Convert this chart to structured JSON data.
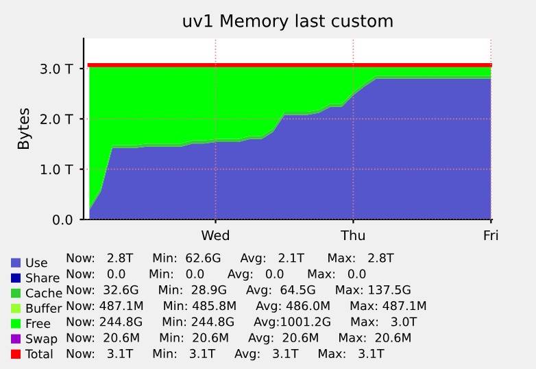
{
  "chart_data": {
    "type": "area",
    "stacked": true,
    "title": "uv1 Memory last custom",
    "ylabel": "Bytes",
    "categories": [
      null,
      null,
      null,
      null,
      null,
      null,
      null,
      null,
      null,
      null,
      null,
      "Wed",
      null,
      null,
      null,
      null,
      null,
      null,
      null,
      null,
      null,
      null,
      null,
      "Thu",
      null,
      null,
      null,
      null,
      null,
      null,
      null,
      null,
      null,
      null,
      null,
      "Fri"
    ],
    "series": [
      {
        "name": "Use",
        "color": "#5555cc",
        "values": [
          0.19,
          0.56,
          1.42,
          1.42,
          1.42,
          1.45,
          1.45,
          1.45,
          1.45,
          1.51,
          1.51,
          1.54,
          1.54,
          1.54,
          1.6,
          1.6,
          1.74,
          2.08,
          2.08,
          2.08,
          2.12,
          2.24,
          2.24,
          2.47,
          2.65,
          2.8,
          2.8,
          2.8,
          2.8,
          2.8,
          2.8,
          2.8,
          2.8,
          2.8,
          2.8,
          2.8
        ]
      },
      {
        "name": "Share",
        "color": "#0000aa",
        "values": [
          null,
          null,
          null,
          null,
          null,
          null,
          null,
          null,
          null,
          null,
          null,
          null,
          null,
          null,
          null,
          null,
          null,
          null,
          null,
          null,
          null,
          null,
          null,
          null,
          null,
          null,
          null,
          null,
          null,
          null,
          null,
          null,
          null,
          null,
          null,
          null
        ]
      },
      {
        "name": "Cache",
        "color": "#33cc33",
        "values": [
          0.06,
          0.06,
          0.06,
          0.06,
          0.06,
          0.06,
          0.06,
          0.06,
          0.06,
          0.06,
          0.06,
          0.06,
          0.06,
          0.06,
          0.06,
          0.06,
          0.06,
          0.06,
          0.06,
          0.06,
          0.06,
          0.06,
          0.06,
          0.06,
          0.06,
          0.06,
          0.06,
          0.06,
          0.06,
          0.06,
          0.06,
          0.06,
          0.06,
          0.06,
          0.06,
          0.06
        ]
      },
      {
        "name": "Buffer",
        "color": "#99ff33",
        "values": [
          null,
          null,
          null,
          null,
          null,
          null,
          null,
          null,
          null,
          null,
          null,
          null,
          null,
          null,
          null,
          null,
          null,
          null,
          null,
          null,
          null,
          null,
          null,
          null,
          null,
          null,
          null,
          null,
          null,
          null,
          null,
          null,
          null,
          null,
          null,
          null
        ]
      },
      {
        "name": "Free",
        "color": "#00ff00",
        "values": [
          2.81,
          2.44,
          1.58,
          1.58,
          1.58,
          1.55,
          1.55,
          1.55,
          1.55,
          1.49,
          1.49,
          1.46,
          1.46,
          1.46,
          1.4,
          1.4,
          1.26,
          0.92,
          0.92,
          0.92,
          0.88,
          0.76,
          0.76,
          0.53,
          0.35,
          0.2,
          0.2,
          0.2,
          0.2,
          0.2,
          0.2,
          0.2,
          0.2,
          0.2,
          0.2,
          0.2
        ]
      },
      {
        "name": "Swap",
        "color": "#9900cc",
        "values": [
          null,
          null,
          null,
          null,
          null,
          null,
          null,
          null,
          null,
          null,
          null,
          null,
          null,
          null,
          null,
          null,
          null,
          null,
          null,
          null,
          null,
          null,
          null,
          null,
          null,
          null,
          null,
          null,
          null,
          null,
          null,
          null,
          null,
          null,
          null,
          null
        ]
      },
      {
        "name": "Total",
        "color": "#ff0000",
        "type": "line",
        "values": [
          3.07,
          3.07,
          3.07,
          3.07,
          3.07,
          3.07,
          3.07,
          3.07,
          3.07,
          3.07,
          3.07,
          3.07,
          3.07,
          3.07,
          3.07,
          3.07,
          3.07,
          3.07,
          3.07,
          3.07,
          3.07,
          3.07,
          3.07,
          3.07,
          3.07,
          3.07,
          3.07,
          3.07,
          3.07,
          3.07,
          3.07,
          3.07,
          3.07,
          3.07,
          3.07,
          3.07
        ]
      }
    ],
    "annotations": [
      "Now:   2.8T     Min:  62.6G     Avg:   2.1T      Max:   2.8T",
      "Now:   0.0      Min:   0.0      Avg:   0.0      Max:   0.0",
      "Now:  32.6G     Min:  28.9G     Avg:  64.5G     Max: 137.5G",
      "Now: 487.1M     Min: 485.8M     Avg: 486.0M     Max: 487.1M",
      "Now: 244.8G     Min: 244.8G     Avg:1001.2G     Max:   3.0T",
      "Now:  20.6M     Min:  20.6M     Avg:  20.6M     Max:  20.6M",
      "Now:   3.1T     Min:   3.1T     Avg:   3.1T     Max:   3.1T"
    ],
    "ylim": [
      0,
      3.6
    ],
    "yticks": [
      {
        "value": 0,
        "label": "0.0"
      },
      {
        "value": 1,
        "label": "1.0 T"
      },
      {
        "value": 2,
        "label": "2.0 T"
      },
      {
        "value": 3,
        "label": "3.0 T"
      }
    ],
    "grid": true,
    "legend": "bottom"
  }
}
